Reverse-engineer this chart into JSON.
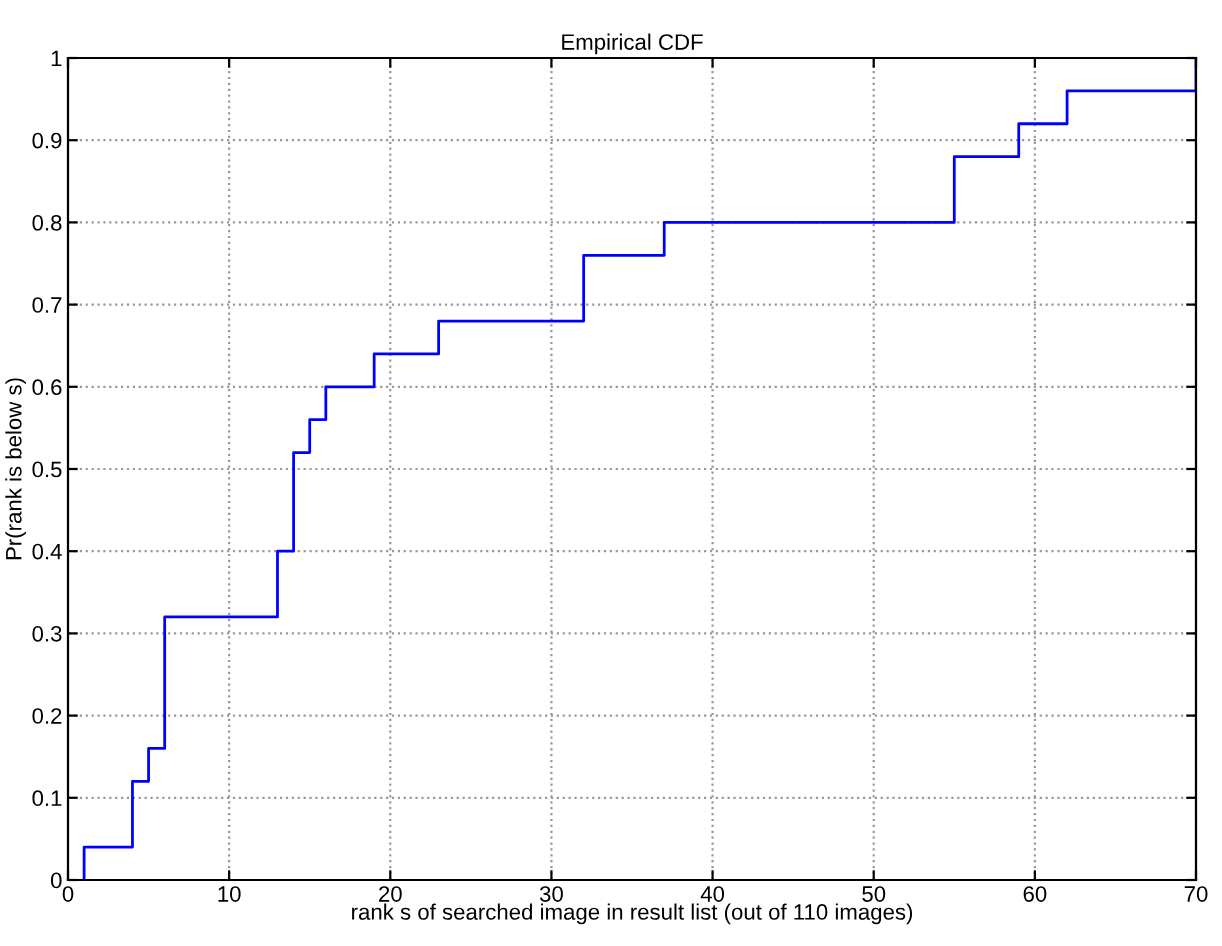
{
  "chart_data": {
    "type": "step",
    "title": "Empirical CDF",
    "xlabel": "rank s of searched image in result list (out of 110 images)",
    "ylabel": "Pr(rank is below s)",
    "x": [
      1,
      1,
      4,
      5,
      6,
      13,
      14,
      15,
      16,
      19,
      23,
      32,
      37,
      55,
      59,
      62,
      70
    ],
    "series": [
      {
        "color": "#0000ff",
        "values": [
          0,
          0.04,
          0.12,
          0.16,
          0.32,
          0.4,
          0.52,
          0.56,
          0.6,
          0.64,
          0.68,
          0.76,
          0.8,
          0.88,
          0.92,
          0.96,
          1.0
        ]
      }
    ],
    "xlim": [
      0,
      70
    ],
    "xticks": [
      0,
      10,
      20,
      30,
      40,
      50,
      60,
      70
    ],
    "ylim": [
      0,
      1
    ],
    "yticks": [
      0,
      0.1,
      0.2,
      0.3,
      0.4,
      0.5,
      0.6,
      0.7,
      0.8,
      0.9,
      1
    ],
    "grid": true,
    "line_style": "solid"
  }
}
